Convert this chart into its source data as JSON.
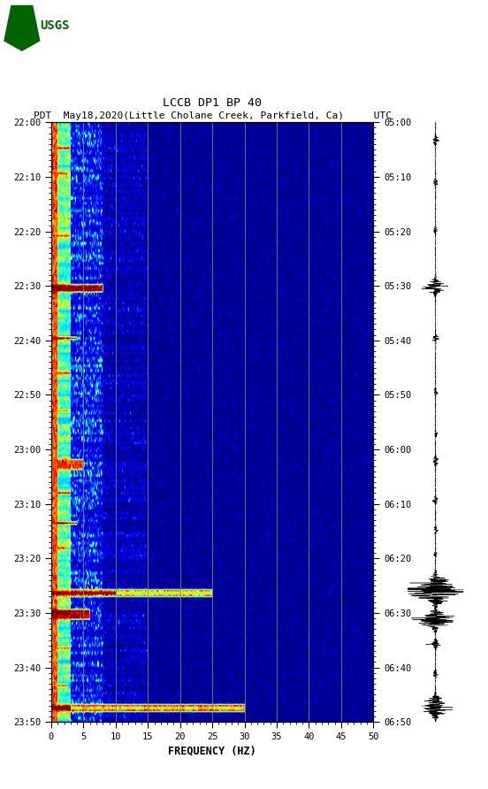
{
  "title_line1": "LCCB DP1 BP 40",
  "title_line2": "PDT  May18,2020(Little Cholane Creek, Parkfield, Ca)     UTC",
  "xlabel": "FREQUENCY (HZ)",
  "left_yticks": [
    "22:00",
    "22:10",
    "22:20",
    "22:30",
    "22:40",
    "22:50",
    "23:00",
    "23:10",
    "23:20",
    "23:30",
    "23:40",
    "23:50"
  ],
  "right_yticks": [
    "05:00",
    "05:10",
    "05:20",
    "05:30",
    "05:40",
    "05:50",
    "06:00",
    "06:10",
    "06:20",
    "06:30",
    "06:40",
    "06:50"
  ],
  "xticks": [
    0,
    5,
    10,
    15,
    20,
    25,
    30,
    35,
    40,
    45,
    50
  ],
  "freq_min": 0,
  "freq_max": 50,
  "time_steps": 240,
  "freq_steps": 500,
  "vgrid_freqs": [
    5,
    10,
    15,
    20,
    25,
    30,
    35,
    40,
    45
  ],
  "figure_bg": "#ffffff",
  "grid_color": "#888866",
  "noise_seed": 42
}
